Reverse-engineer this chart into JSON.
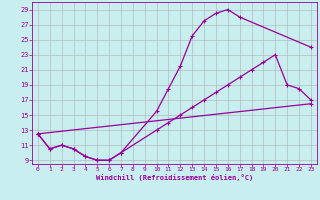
{
  "xlabel": "Windchill (Refroidissement éolien,°C)",
  "bg_color": "#c8eef0",
  "line_color": "#990099",
  "grid_color": "#b0b0b0",
  "xlim": [
    -0.5,
    23.5
  ],
  "ylim": [
    8.5,
    30.0
  ],
  "xticks": [
    0,
    1,
    2,
    3,
    4,
    5,
    6,
    7,
    8,
    9,
    10,
    11,
    12,
    13,
    14,
    15,
    16,
    17,
    18,
    19,
    20,
    21,
    22,
    23
  ],
  "yticks": [
    9,
    11,
    13,
    15,
    17,
    19,
    21,
    23,
    25,
    27,
    29
  ],
  "line1_x": [
    0,
    1,
    2,
    3,
    4,
    5,
    6,
    7,
    10,
    11,
    12,
    13,
    14,
    15,
    16,
    17,
    23
  ],
  "line1_y": [
    12.5,
    10.5,
    11.0,
    10.5,
    9.5,
    9.0,
    9.0,
    10.0,
    15.5,
    18.5,
    21.5,
    25.5,
    27.5,
    28.5,
    29.0,
    28.0,
    24.0
  ],
  "line2_x": [
    0,
    1,
    2,
    3,
    4,
    5,
    6,
    7,
    10,
    11,
    12,
    13,
    14,
    15,
    16,
    17,
    18,
    19,
    20,
    21,
    22,
    23
  ],
  "line2_y": [
    12.5,
    10.5,
    11.0,
    10.5,
    9.5,
    9.0,
    9.0,
    10.0,
    13.0,
    14.0,
    15.0,
    16.0,
    17.0,
    18.0,
    19.0,
    20.0,
    21.0,
    22.0,
    23.0,
    19.0,
    18.5,
    17.0
  ],
  "line3_x": [
    0,
    23
  ],
  "line3_y": [
    12.5,
    16.5
  ],
  "marker": "+"
}
